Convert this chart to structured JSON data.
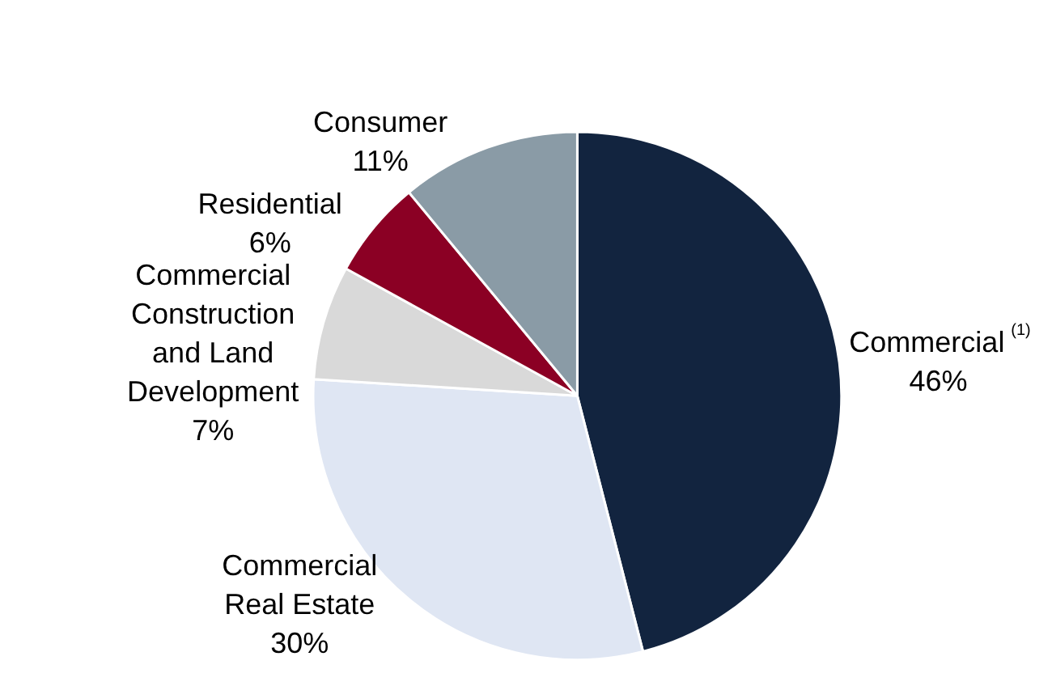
{
  "chart_data": {
    "type": "pie",
    "categories": [
      "Commercial $^{(1)}$",
      "Commercial Real Estate",
      "Commercial Construction and Land Development",
      "Residential",
      "Consumer"
    ],
    "values": [
      46,
      30,
      7,
      6,
      11
    ],
    "value_labels": [
      "46%",
      "30%",
      "7%",
      "6%",
      "11%"
    ],
    "colors": [
      "#12243f",
      "#dfe6f3",
      "#d9d9d9",
      "#8b0024",
      "#8a9ba6"
    ],
    "legend": false
  }
}
